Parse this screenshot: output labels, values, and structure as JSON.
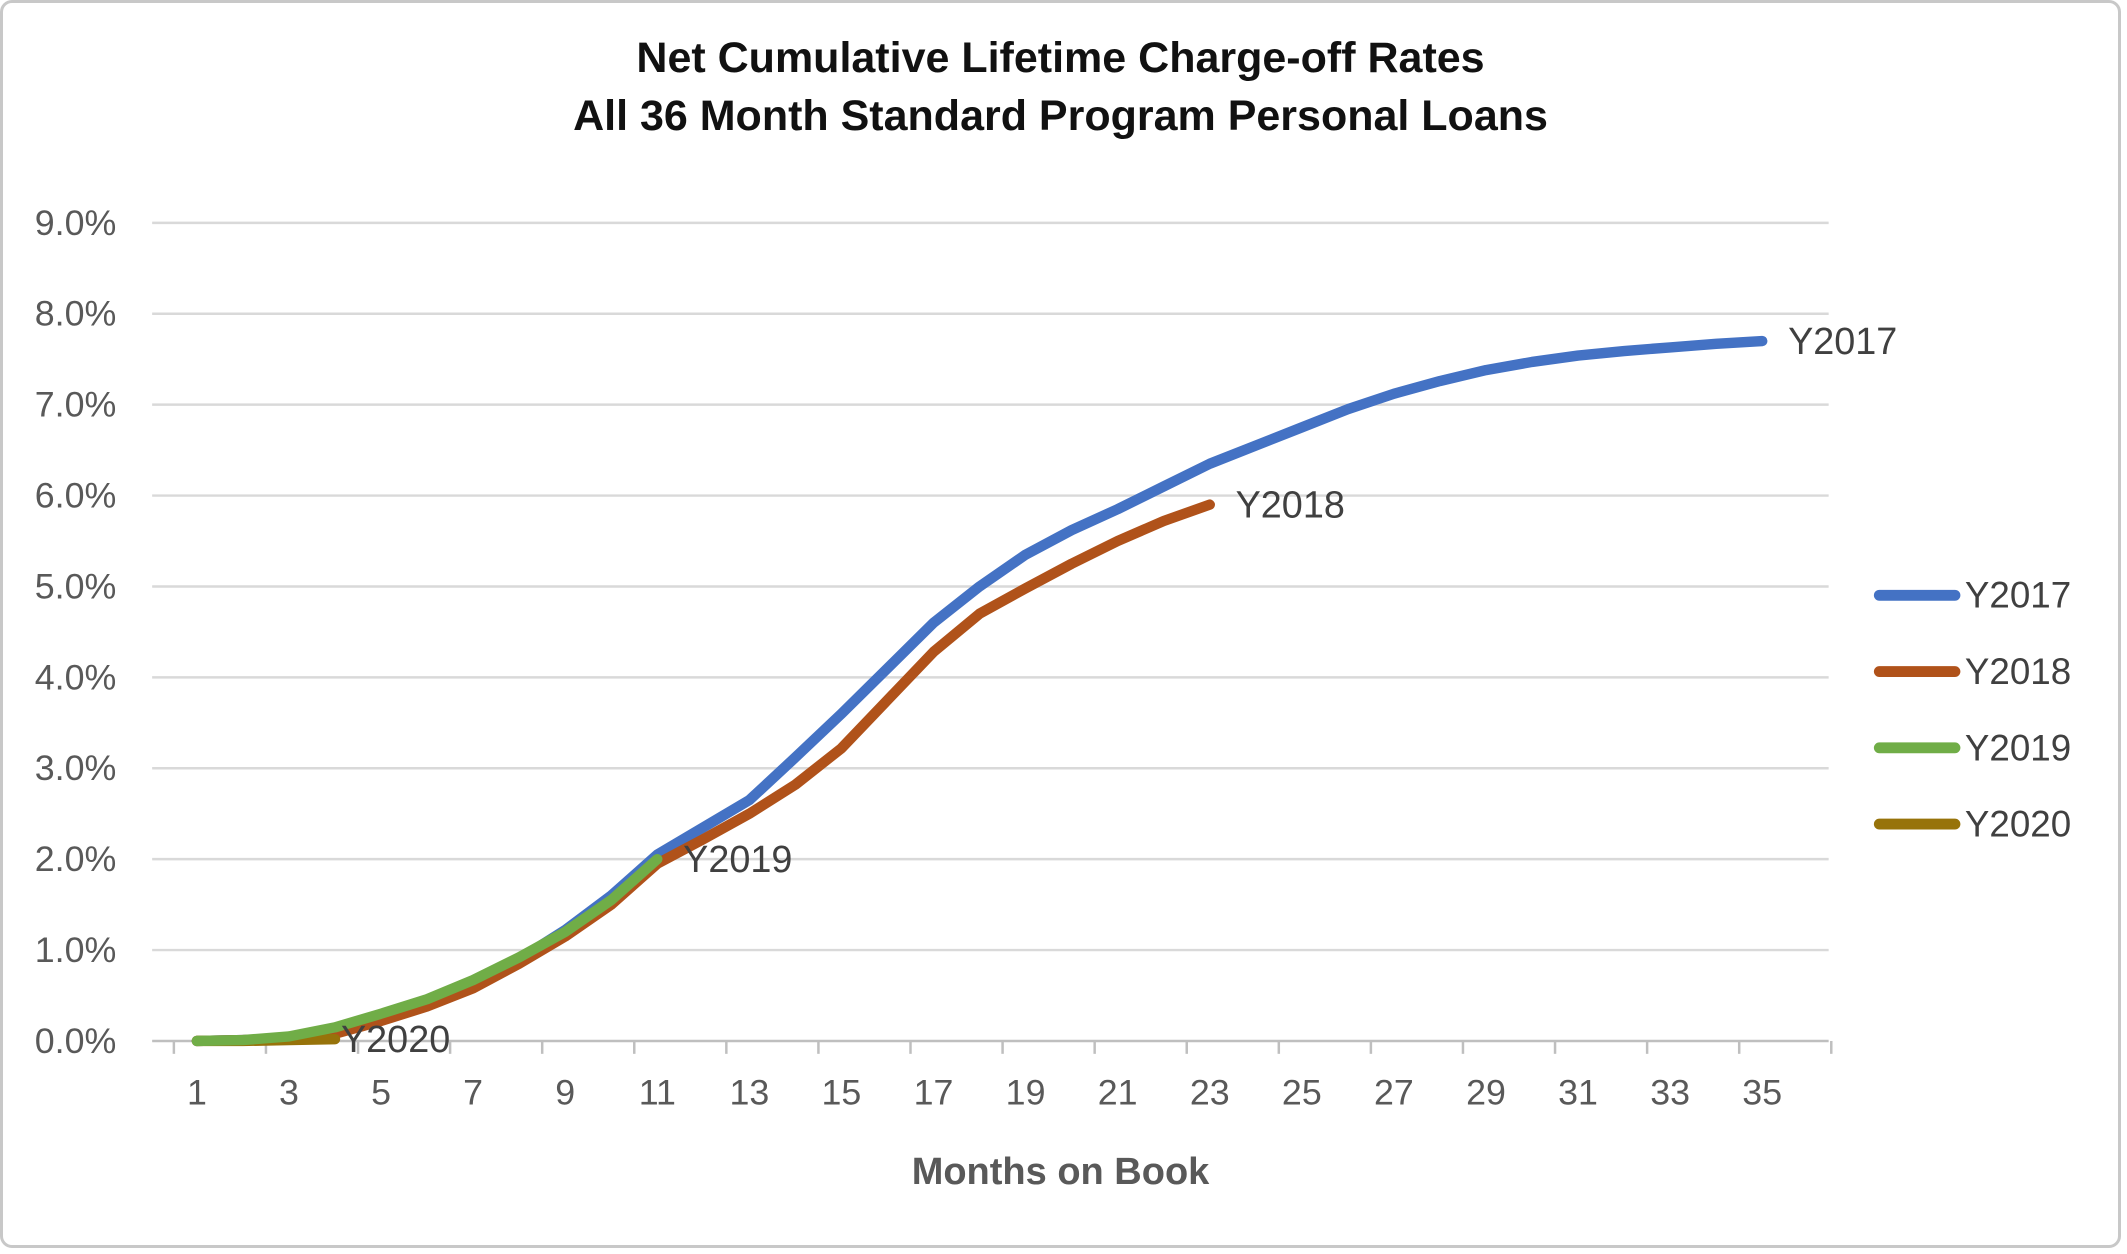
{
  "title": {
    "line1": "Net Cumulative Lifetime Charge-off Rates",
    "line2": "All 36 Month Standard Program Personal Loans"
  },
  "chart_data": {
    "type": "line",
    "title": "Net Cumulative Lifetime Charge-off Rates — All 36 Month Standard Program Personal Loans",
    "xlabel": "Months on Book",
    "ylabel": "",
    "x_axis": {
      "title": "Months on Book",
      "tick_labels": [
        "1",
        "3",
        "5",
        "7",
        "9",
        "11",
        "13",
        "15",
        "17",
        "19",
        "21",
        "23",
        "25",
        "27",
        "29",
        "31",
        "33",
        "35"
      ],
      "categories_range": [
        1,
        36
      ]
    },
    "y_axis": {
      "tick_labels": [
        "0.0%",
        "1.0%",
        "2.0%",
        "3.0%",
        "4.0%",
        "5.0%",
        "6.0%",
        "7.0%",
        "8.0%",
        "9.0%"
      ],
      "min": 0,
      "max": 9,
      "unit": "percent"
    },
    "grid": "horizontal-on",
    "legend": {
      "position": "right",
      "entries": [
        "Y2017",
        "Y2018",
        "Y2019",
        "Y2020"
      ]
    },
    "series": [
      {
        "name": "Y2017",
        "end_label": "Y2017",
        "color": "#4472C4",
        "start_month": 1,
        "values": [
          0.0,
          0.01,
          0.03,
          0.1,
          0.26,
          0.42,
          0.62,
          0.9,
          1.22,
          1.6,
          2.05,
          2.35,
          2.65,
          3.12,
          3.6,
          4.1,
          4.6,
          5.0,
          5.35,
          5.62,
          5.85,
          6.1,
          6.35,
          6.55,
          6.75,
          6.95,
          7.12,
          7.26,
          7.38,
          7.47,
          7.54,
          7.59,
          7.63,
          7.67,
          7.7
        ]
      },
      {
        "name": "Y2018",
        "end_label": "Y2018",
        "color": "#B0521A",
        "start_month": 1,
        "values": [
          0.0,
          0.01,
          0.02,
          0.08,
          0.22,
          0.38,
          0.58,
          0.85,
          1.15,
          1.5,
          1.95,
          2.22,
          2.5,
          2.82,
          3.22,
          3.75,
          4.28,
          4.7,
          4.98,
          5.25,
          5.5,
          5.72,
          5.9
        ]
      },
      {
        "name": "Y2019",
        "end_label": "Y2019",
        "color": "#70AD47",
        "start_month": 1,
        "values": [
          0.0,
          0.01,
          0.05,
          0.15,
          0.3,
          0.46,
          0.67,
          0.92,
          1.2,
          1.55,
          2.0
        ]
      },
      {
        "name": "Y2020",
        "end_label": "Y2020",
        "color": "#97730A",
        "start_month": 1,
        "values": [
          0.0,
          0.0,
          0.01,
          0.02
        ]
      }
    ],
    "draw_order": [
      "Y2017",
      "Y2018",
      "Y2020",
      "Y2019"
    ],
    "annotations": [
      {
        "text": "Y2017",
        "attached_to": "Y2017 line end"
      },
      {
        "text": "Y2018",
        "attached_to": "Y2018 line end"
      },
      {
        "text": "Y2019",
        "attached_to": "Y2019 line end"
      },
      {
        "text": "Y2020",
        "attached_to": "Y2020 line end"
      }
    ]
  },
  "colors": {
    "grid_line": "#D9D9D9",
    "axis_line": "#BFBFBF",
    "tick_label": "#595959",
    "data_label": "#404040",
    "title_text": "#111111",
    "background": "#FFFFFF",
    "card_border": "#C8C8C8"
  }
}
